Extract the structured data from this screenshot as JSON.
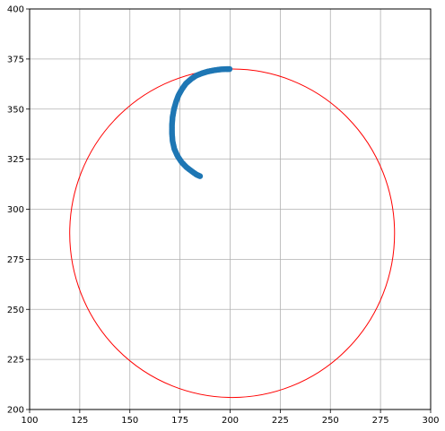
{
  "chart_data": {
    "type": "scatter",
    "title": "",
    "xlabel": "",
    "ylabel": "",
    "xlim": [
      100,
      300
    ],
    "ylim": [
      200,
      400
    ],
    "x_ticks": [
      100,
      125,
      150,
      175,
      200,
      225,
      250,
      275,
      300
    ],
    "y_ticks": [
      200,
      225,
      250,
      275,
      300,
      325,
      350,
      375,
      400
    ],
    "x_tick_labels": [
      "100",
      "125",
      "150",
      "175",
      "200",
      "225",
      "250",
      "275",
      "300"
    ],
    "y_tick_labels": [
      "200",
      "225",
      "250",
      "275",
      "300",
      "325",
      "350",
      "375",
      "400"
    ],
    "grid": true,
    "colors": {
      "points": "#1f77b4",
      "circle": "#ff0000",
      "grid": "#b0b0b0",
      "axes": "#000000"
    },
    "series": [
      {
        "kind": "points",
        "points": [
          [
            199.8,
            370.0
          ],
          [
            198.0,
            370.0
          ],
          [
            195.0,
            369.8
          ],
          [
            192.0,
            369.4
          ],
          [
            189.0,
            368.8
          ],
          [
            186.0,
            367.9
          ],
          [
            183.0,
            366.7
          ],
          [
            180.5,
            365.0
          ],
          [
            178.0,
            362.8
          ],
          [
            176.0,
            360.0
          ],
          [
            174.3,
            357.0
          ],
          [
            173.0,
            353.5
          ],
          [
            172.0,
            350.0
          ],
          [
            171.3,
            346.0
          ],
          [
            171.0,
            342.0
          ],
          [
            171.0,
            338.0
          ],
          [
            171.3,
            334.0
          ],
          [
            172.2,
            330.0
          ],
          [
            173.8,
            326.5
          ],
          [
            175.8,
            323.5
          ],
          [
            178.2,
            321.0
          ],
          [
            180.8,
            319.0
          ],
          [
            183.2,
            317.3
          ],
          [
            185.0,
            316.5
          ]
        ]
      },
      {
        "kind": "circle",
        "center": [
          201,
          288
        ],
        "radius_x": 81,
        "radius_y": 82
      }
    ]
  }
}
